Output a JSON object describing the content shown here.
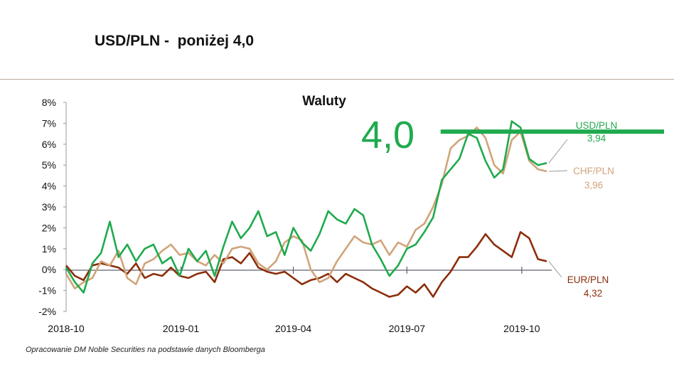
{
  "slide": {
    "title": "USD/PLN -  poniżej 4,0",
    "source_note": "Opracowanie DM Noble Securities  na podstawie danych Bloomberga"
  },
  "chart_data": {
    "type": "line",
    "title": "Waluty",
    "xlabel": "",
    "ylabel": "",
    "x_range": [
      "2018-10-01",
      "2019-10-25"
    ],
    "xticks": [
      "2018-10",
      "2019-01",
      "2019-04",
      "2019-07",
      "2019-10"
    ],
    "ylim": [
      -2,
      8
    ],
    "yticks": [
      "-2%",
      "-1%",
      "0%",
      "1%",
      "2%",
      "3%",
      "4%",
      "5%",
      "6%",
      "7%",
      "8%"
    ],
    "grid": false,
    "series": [
      {
        "name": "USD/PLN",
        "last_value": "3,94",
        "color": "#1faa4e",
        "points": [
          [
            "2018-10-01",
            0.1
          ],
          [
            "2018-10-08",
            -0.6
          ],
          [
            "2018-10-15",
            -1.1
          ],
          [
            "2018-10-22",
            0.3
          ],
          [
            "2018-10-29",
            0.8
          ],
          [
            "2018-11-05",
            2.3
          ],
          [
            "2018-11-12",
            0.6
          ],
          [
            "2018-11-19",
            1.2
          ],
          [
            "2018-11-26",
            0.4
          ],
          [
            "2018-12-03",
            1.0
          ],
          [
            "2018-12-10",
            1.2
          ],
          [
            "2018-12-17",
            0.3
          ],
          [
            "2018-12-24",
            0.6
          ],
          [
            "2018-12-31",
            -0.3
          ],
          [
            "2019-01-07",
            1.0
          ],
          [
            "2019-01-14",
            0.4
          ],
          [
            "2019-01-21",
            0.9
          ],
          [
            "2019-01-28",
            -0.3
          ],
          [
            "2019-02-04",
            1.1
          ],
          [
            "2019-02-11",
            2.3
          ],
          [
            "2019-02-18",
            1.5
          ],
          [
            "2019-02-25",
            2.0
          ],
          [
            "2019-03-04",
            2.8
          ],
          [
            "2019-03-11",
            1.6
          ],
          [
            "2019-03-18",
            1.8
          ],
          [
            "2019-03-25",
            0.7
          ],
          [
            "2019-04-01",
            2.0
          ],
          [
            "2019-04-08",
            1.3
          ],
          [
            "2019-04-15",
            0.9
          ],
          [
            "2019-04-22",
            1.7
          ],
          [
            "2019-04-29",
            2.8
          ],
          [
            "2019-05-06",
            2.4
          ],
          [
            "2019-05-13",
            2.2
          ],
          [
            "2019-05-20",
            2.9
          ],
          [
            "2019-05-27",
            2.6
          ],
          [
            "2019-06-03",
            1.2
          ],
          [
            "2019-06-10",
            0.5
          ],
          [
            "2019-06-17",
            -0.3
          ],
          [
            "2019-06-24",
            0.2
          ],
          [
            "2019-07-01",
            1.0
          ],
          [
            "2019-07-08",
            1.2
          ],
          [
            "2019-07-15",
            1.8
          ],
          [
            "2019-07-22",
            2.5
          ],
          [
            "2019-07-29",
            4.3
          ],
          [
            "2019-08-05",
            4.8
          ],
          [
            "2019-08-12",
            5.3
          ],
          [
            "2019-08-19",
            6.5
          ],
          [
            "2019-08-26",
            6.3
          ],
          [
            "2019-09-02",
            5.2
          ],
          [
            "2019-09-09",
            4.4
          ],
          [
            "2019-09-16",
            4.8
          ],
          [
            "2019-09-23",
            7.1
          ],
          [
            "2019-09-30",
            6.8
          ],
          [
            "2019-10-07",
            5.3
          ],
          [
            "2019-10-14",
            5.0
          ],
          [
            "2019-10-21",
            5.1
          ]
        ]
      },
      {
        "name": "CHF/PLN",
        "last_value": "3,96",
        "color": "#d0a47a",
        "points": [
          [
            "2018-10-01",
            -0.2
          ],
          [
            "2018-10-08",
            -0.9
          ],
          [
            "2018-10-15",
            -0.6
          ],
          [
            "2018-10-22",
            -0.4
          ],
          [
            "2018-10-29",
            0.4
          ],
          [
            "2018-11-05",
            0.2
          ],
          [
            "2018-11-12",
            0.9
          ],
          [
            "2018-11-19",
            -0.4
          ],
          [
            "2018-11-26",
            -0.7
          ],
          [
            "2018-12-03",
            0.3
          ],
          [
            "2018-12-10",
            0.5
          ],
          [
            "2018-12-17",
            0.9
          ],
          [
            "2018-12-24",
            1.2
          ],
          [
            "2018-12-31",
            0.7
          ],
          [
            "2019-01-07",
            0.8
          ],
          [
            "2019-01-14",
            0.4
          ],
          [
            "2019-01-21",
            0.2
          ],
          [
            "2019-01-28",
            0.7
          ],
          [
            "2019-02-04",
            0.3
          ],
          [
            "2019-02-11",
            1.0
          ],
          [
            "2019-02-18",
            1.1
          ],
          [
            "2019-02-25",
            1.0
          ],
          [
            "2019-03-04",
            0.3
          ],
          [
            "2019-03-11",
            0.0
          ],
          [
            "2019-03-18",
            0.4
          ],
          [
            "2019-03-25",
            1.3
          ],
          [
            "2019-04-01",
            1.6
          ],
          [
            "2019-04-08",
            1.4
          ],
          [
            "2019-04-15",
            0.0
          ],
          [
            "2019-04-22",
            -0.6
          ],
          [
            "2019-04-29",
            -0.4
          ],
          [
            "2019-05-06",
            0.4
          ],
          [
            "2019-05-13",
            1.0
          ],
          [
            "2019-05-20",
            1.6
          ],
          [
            "2019-05-27",
            1.3
          ],
          [
            "2019-06-03",
            1.2
          ],
          [
            "2019-06-10",
            1.4
          ],
          [
            "2019-06-17",
            0.7
          ],
          [
            "2019-06-24",
            1.3
          ],
          [
            "2019-07-01",
            1.1
          ],
          [
            "2019-07-08",
            1.9
          ],
          [
            "2019-07-15",
            2.2
          ],
          [
            "2019-07-22",
            3.0
          ],
          [
            "2019-07-29",
            4.1
          ],
          [
            "2019-08-05",
            5.8
          ],
          [
            "2019-08-12",
            6.2
          ],
          [
            "2019-08-19",
            6.4
          ],
          [
            "2019-08-26",
            6.8
          ],
          [
            "2019-09-02",
            6.3
          ],
          [
            "2019-09-09",
            5.0
          ],
          [
            "2019-09-16",
            4.6
          ],
          [
            "2019-09-23",
            6.2
          ],
          [
            "2019-09-30",
            6.6
          ],
          [
            "2019-10-07",
            5.2
          ],
          [
            "2019-10-14",
            4.8
          ],
          [
            "2019-10-21",
            4.7
          ]
        ]
      },
      {
        "name": "EUR/PLN",
        "last_value": "4,32",
        "color": "#8b2e0b",
        "points": [
          [
            "2018-10-01",
            0.2
          ],
          [
            "2018-10-08",
            -0.3
          ],
          [
            "2018-10-15",
            -0.5
          ],
          [
            "2018-10-22",
            0.2
          ],
          [
            "2018-10-29",
            0.3
          ],
          [
            "2018-11-05",
            0.2
          ],
          [
            "2018-11-12",
            0.1
          ],
          [
            "2018-11-19",
            -0.2
          ],
          [
            "2018-11-26",
            0.3
          ],
          [
            "2018-12-03",
            -0.4
          ],
          [
            "2018-12-10",
            -0.2
          ],
          [
            "2018-12-17",
            -0.3
          ],
          [
            "2018-12-24",
            0.1
          ],
          [
            "2018-12-31",
            -0.3
          ],
          [
            "2019-01-07",
            -0.4
          ],
          [
            "2019-01-14",
            -0.2
          ],
          [
            "2019-01-21",
            -0.1
          ],
          [
            "2019-01-28",
            -0.6
          ],
          [
            "2019-02-04",
            0.5
          ],
          [
            "2019-02-11",
            0.6
          ],
          [
            "2019-02-18",
            0.3
          ],
          [
            "2019-02-25",
            0.8
          ],
          [
            "2019-03-04",
            0.1
          ],
          [
            "2019-03-11",
            -0.1
          ],
          [
            "2019-03-18",
            -0.2
          ],
          [
            "2019-03-25",
            -0.1
          ],
          [
            "2019-04-01",
            -0.4
          ],
          [
            "2019-04-08",
            -0.7
          ],
          [
            "2019-04-15",
            -0.5
          ],
          [
            "2019-04-22",
            -0.4
          ],
          [
            "2019-04-29",
            -0.2
          ],
          [
            "2019-05-06",
            -0.6
          ],
          [
            "2019-05-13",
            -0.2
          ],
          [
            "2019-05-20",
            -0.4
          ],
          [
            "2019-05-27",
            -0.6
          ],
          [
            "2019-06-03",
            -0.9
          ],
          [
            "2019-06-10",
            -1.1
          ],
          [
            "2019-06-17",
            -1.3
          ],
          [
            "2019-06-24",
            -1.2
          ],
          [
            "2019-07-01",
            -0.8
          ],
          [
            "2019-07-08",
            -1.1
          ],
          [
            "2019-07-15",
            -0.7
          ],
          [
            "2019-07-22",
            -1.3
          ],
          [
            "2019-07-29",
            -0.6
          ],
          [
            "2019-08-05",
            -0.1
          ],
          [
            "2019-08-12",
            0.6
          ],
          [
            "2019-08-19",
            0.6
          ],
          [
            "2019-08-26",
            1.1
          ],
          [
            "2019-09-02",
            1.7
          ],
          [
            "2019-09-09",
            1.2
          ],
          [
            "2019-09-16",
            0.9
          ],
          [
            "2019-09-23",
            0.6
          ],
          [
            "2019-09-30",
            1.8
          ],
          [
            "2019-10-07",
            1.5
          ],
          [
            "2019-10-14",
            0.5
          ],
          [
            "2019-10-21",
            0.4
          ]
        ]
      }
    ],
    "annotation": {
      "text": "4,0",
      "color": "#1faa4e",
      "level_percent": 6.6,
      "line_from": "2019-07-28"
    }
  }
}
